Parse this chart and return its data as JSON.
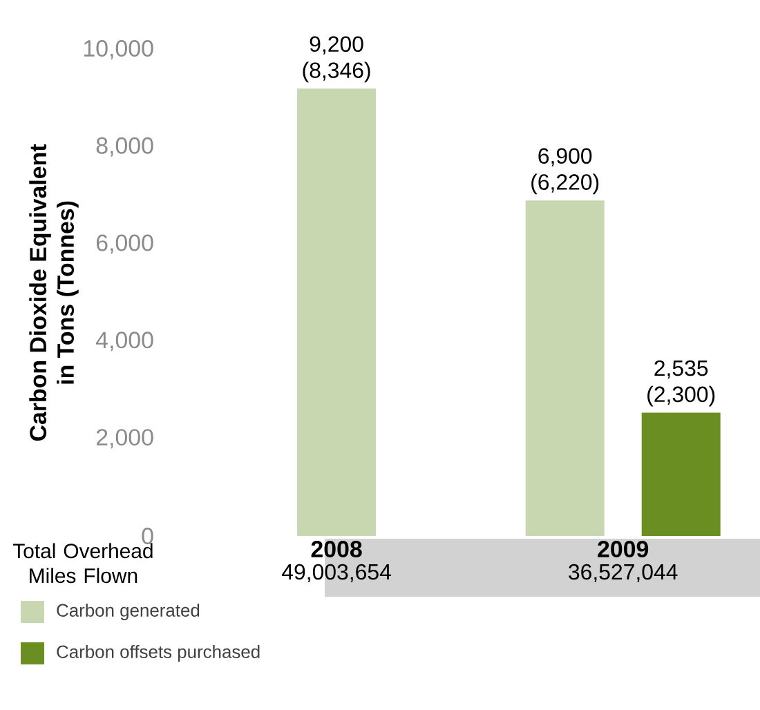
{
  "chart_data": {
    "type": "bar",
    "ylabel": "Carbon Dioxide Equivalent in Tons (Tonnes)",
    "categories": [
      "2008",
      "2009"
    ],
    "series": [
      {
        "name": "Carbon generated",
        "color": "#c9d7b0",
        "values": [
          9200,
          6900
        ],
        "value_labels": [
          "9,200 (8,346)",
          "6,900 (6,220)"
        ]
      },
      {
        "name": "Carbon offsets purchased",
        "color": "#6b8e23",
        "values": [
          null,
          2535
        ],
        "value_labels": [
          null,
          "2,535 (2,300)"
        ]
      }
    ],
    "ylim": [
      0,
      10000
    ],
    "yticks": [
      {
        "value": 0,
        "label": "0"
      },
      {
        "value": 2000,
        "label": "2,000"
      },
      {
        "value": 4000,
        "label": "4,000"
      },
      {
        "value": 6000,
        "label": "6,000"
      },
      {
        "value": 8000,
        "label": "8,000"
      },
      {
        "value": 10000,
        "label": "10,000"
      }
    ],
    "annotations": [
      "Total Overhead Miles Flown",
      "49,003,654",
      "36,527,044"
    ],
    "legend": "bottom",
    "grid": false
  }
}
